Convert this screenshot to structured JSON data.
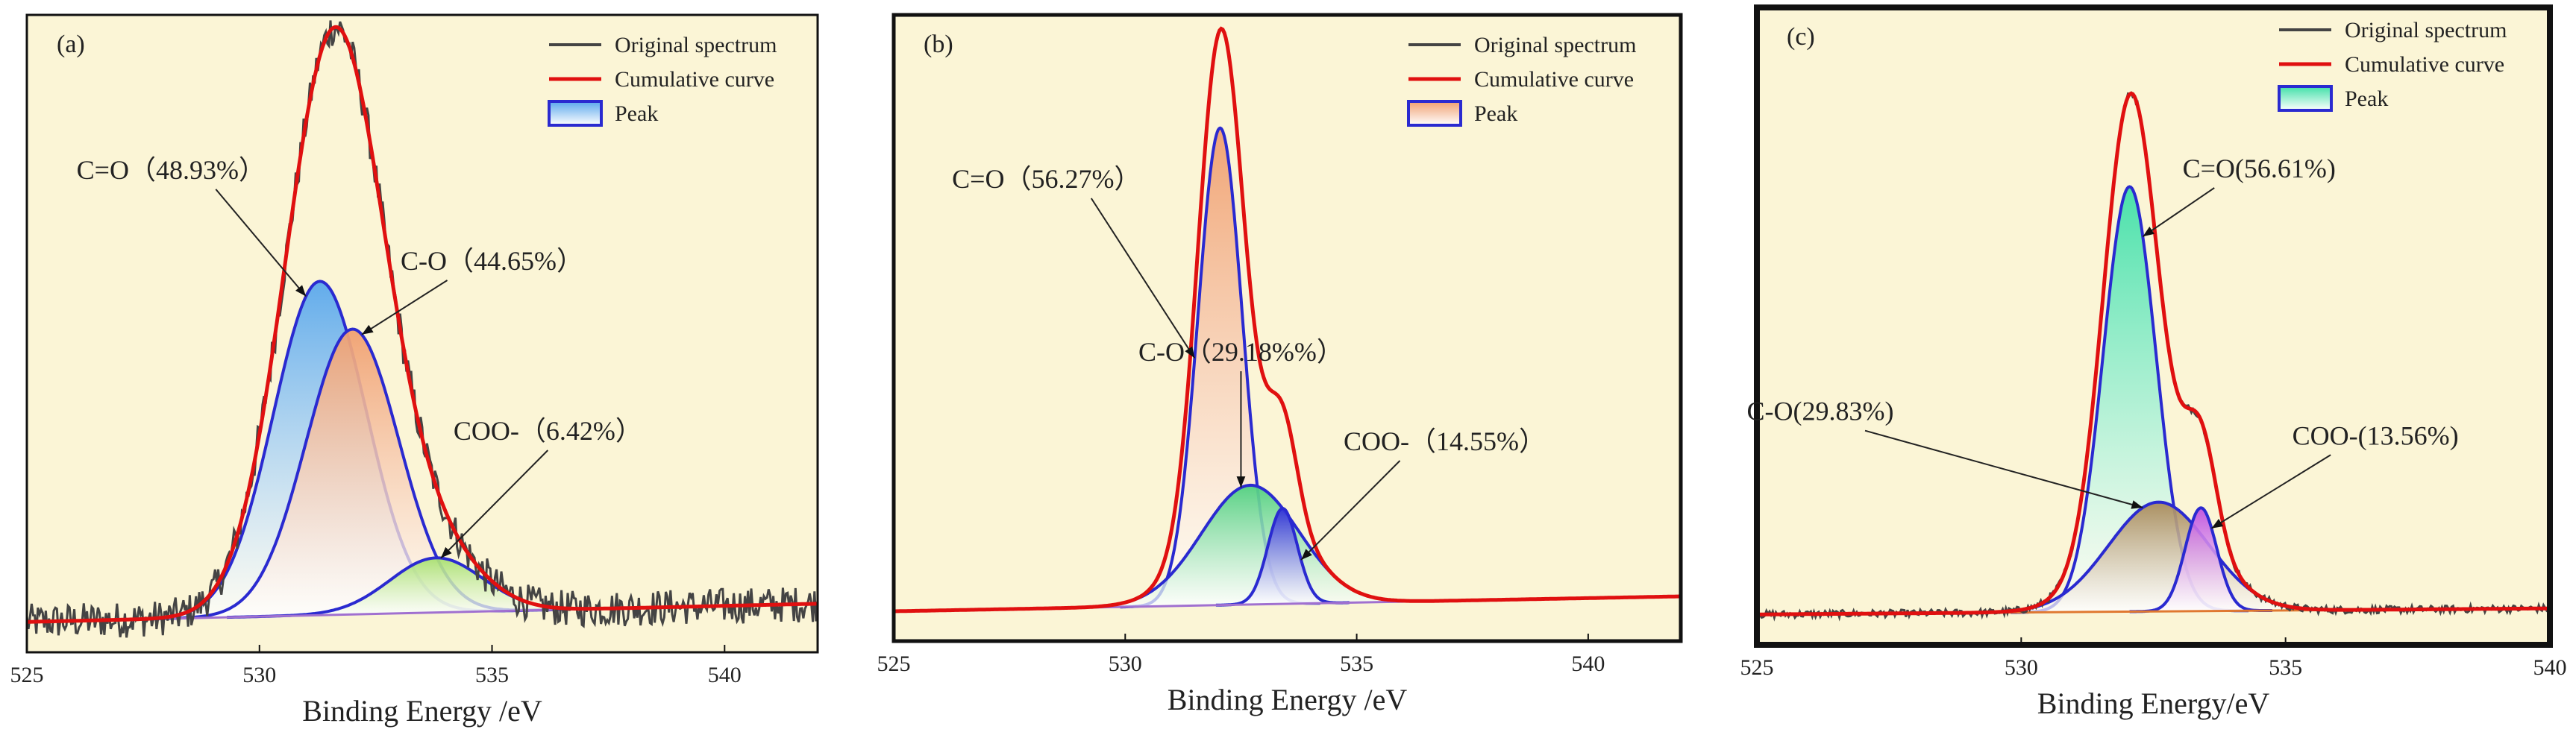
{
  "chart_data": [
    {
      "type": "line",
      "panel": "(a)",
      "xlabel": "Binding Energy /eV",
      "xlim": [
        525,
        542
      ],
      "xticks": [
        525,
        530,
        535,
        540
      ],
      "xtick_labels": [
        "525",
        "530",
        "535",
        "540"
      ],
      "legend": {
        "location": "top-right",
        "entries": [
          "Original spectrum",
          "Cumulative curve",
          "Peak"
        ]
      },
      "colors": {
        "background": "#fbf5d6",
        "original": "#444444",
        "cumulative": "#e01010",
        "peak_line": "#2a2ad0",
        "baseline": "#a070d0"
      },
      "baseline": {
        "x0": 525,
        "y0": 0.0,
        "x1": 542,
        "y1": 0.03
      },
      "peaks": [
        {
          "label": "C=O（48.93%）",
          "center": 531.3,
          "height": 0.55,
          "sigma": 1.0,
          "grad_top": "#5aa8ec",
          "grad_bottom": "#ffffff",
          "label_x": 528.1,
          "label_y": 0.73,
          "arrow_x": 531.0
        },
        {
          "label": "C-O（44.65%）",
          "center": 532.0,
          "height": 0.47,
          "sigma": 1.0,
          "grad_top": "#f0a070",
          "grad_bottom": "#ffffff",
          "label_x": 535.0,
          "label_y": 0.58,
          "arrow_x": 532.2
        },
        {
          "label": "COO-（6.42%）",
          "center": 533.8,
          "height": 0.09,
          "sigma": 1.0,
          "grad_top": "#a8e070",
          "grad_bottom": "#ffffff",
          "label_x": 536.2,
          "label_y": 0.3,
          "arrow_x": 533.9
        }
      ],
      "noise": 0.03,
      "ylim": [
        -0.05,
        1.0
      ]
    },
    {
      "type": "line",
      "panel": "(b)",
      "xlabel": "Binding Energy /eV",
      "xlim": [
        525,
        542
      ],
      "xticks": [
        525,
        530,
        535,
        540
      ],
      "xtick_labels": [
        "525",
        "530",
        "535",
        "540"
      ],
      "legend": {
        "location": "top-right",
        "entries": [
          "Original spectrum",
          "Cumulative curve",
          "Peak"
        ]
      },
      "colors": {
        "background": "#fbf5d6",
        "original": "#444444",
        "cumulative": "#e01010",
        "peak_line": "#2a2ad0",
        "baseline": "#a070d0"
      },
      "baseline": {
        "x0": 525,
        "y0": 0.0,
        "x1": 542,
        "y1": 0.025
      },
      "peaks": [
        {
          "label": "C=O（56.27%）",
          "center": 532.05,
          "height": 0.8,
          "sigma": 0.48,
          "grad_top": "#f0a070",
          "grad_bottom": "#ffffff",
          "label_x": 528.3,
          "label_y": 0.71,
          "arrow_x": 531.5
        },
        {
          "label": "C-O（29.18%%）",
          "center": 532.7,
          "height": 0.2,
          "sigma": 1.05,
          "grad_top": "#50d080",
          "grad_bottom": "#ffffff",
          "label_x": 532.5,
          "label_y": 0.42,
          "arrow_x": 532.5
        },
        {
          "label": "COO-（14.55%）",
          "center": 533.4,
          "height": 0.16,
          "sigma": 0.32,
          "grad_top": "#3030d8",
          "grad_bottom": "#ffffff",
          "label_x": 536.9,
          "label_y": 0.27,
          "arrow_x": 533.8
        }
      ],
      "noise": 0.0,
      "ylim": [
        -0.05,
        1.0
      ]
    },
    {
      "type": "line",
      "panel": "(c)",
      "xlabel": "Binding Energy/eV",
      "xlim": [
        525,
        540
      ],
      "xticks": [
        525,
        530,
        535,
        540
      ],
      "xtick_labels": [
        "525",
        "530",
        "535",
        "540"
      ],
      "legend": {
        "location": "top-right",
        "entries": [
          "Original spectrum",
          "Cumulative curve",
          "Peak"
        ]
      },
      "colors": {
        "background": "#fbf5d6",
        "original": "#444444",
        "cumulative": "#e01010",
        "peak_line": "#2a2ad0",
        "baseline": "#e07830"
      },
      "baseline": {
        "x0": 525,
        "y0": 0.0,
        "x1": 540,
        "y1": 0.01
      },
      "peaks": [
        {
          "label": "C=O(56.61%)",
          "center": 532.05,
          "height": 0.7,
          "sigma": 0.5,
          "grad_top": "#40e0a8",
          "grad_bottom": "#ffffff",
          "label_x": 534.5,
          "label_y": 0.72,
          "arrow_x": 532.3
        },
        {
          "label": "C-O(29.83%)",
          "center": 532.6,
          "height": 0.18,
          "sigma": 0.95,
          "grad_top": "#a88a5a",
          "grad_bottom": "#ffffff",
          "label_x": 526.2,
          "label_y": 0.32,
          "arrow_x": 532.3
        },
        {
          "label": "COO-(13.56%)",
          "center": 533.4,
          "height": 0.17,
          "sigma": 0.3,
          "grad_top": "#c050e0",
          "grad_bottom": "#ffffff",
          "label_x": 536.7,
          "label_y": 0.28,
          "arrow_x": 533.6
        }
      ],
      "noise": 0.006,
      "ylim": [
        -0.05,
        1.0
      ]
    }
  ]
}
